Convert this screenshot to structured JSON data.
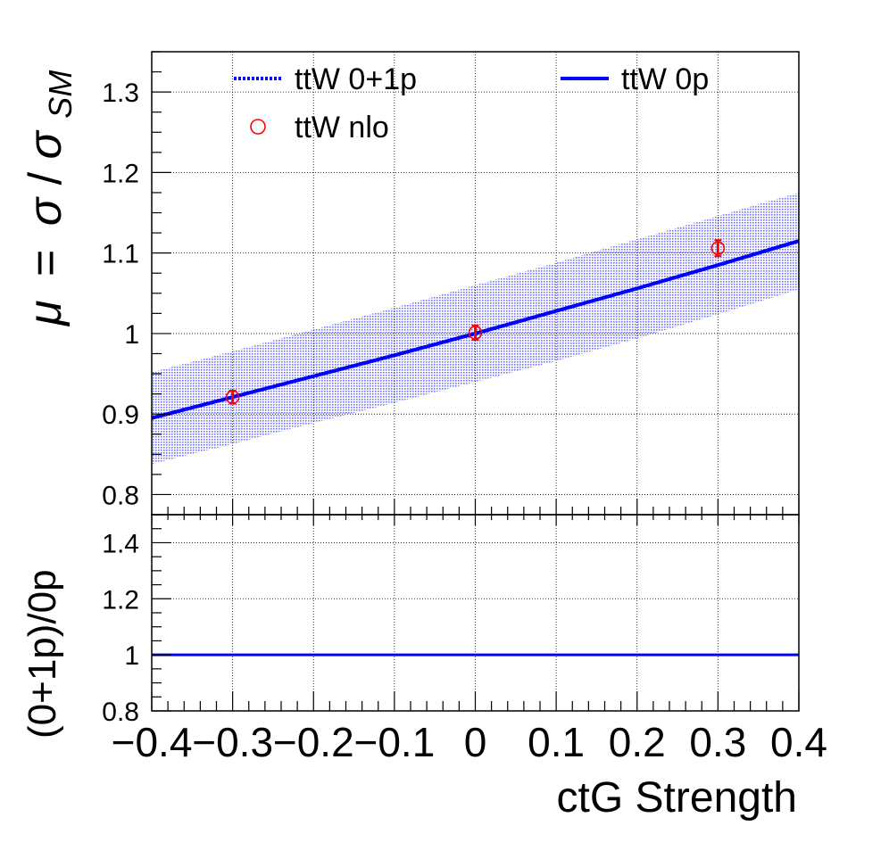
{
  "chart_data": [
    {
      "panel": "main",
      "type": "line",
      "xlabel": "ctG Strength",
      "ylabel": {
        "mu": "μ",
        "eq": "=",
        "sigma": "σ",
        "slash": "/",
        "sub": "SM"
      },
      "xlim": [
        -0.4,
        0.4
      ],
      "ylim": [
        0.775,
        1.35
      ],
      "yticks": [
        0.8,
        0.9,
        1,
        1.1,
        1.2,
        1.3
      ],
      "ytick_labels": [
        "0.8",
        "0.9",
        "1",
        "1.1",
        "1.2",
        "1.3"
      ],
      "grid": true,
      "legend": {
        "placement": "top",
        "entries": [
          "ttW 0+1p",
          "ttW 0p",
          "ttW nlo"
        ]
      },
      "series": [
        {
          "name": "ttW 0+1p",
          "style": "dotted",
          "color": "#0000ff",
          "x": [
            -0.4,
            -0.3,
            -0.2,
            -0.1,
            0.0,
            0.1,
            0.2,
            0.3,
            0.4
          ],
          "y": [
            0.895,
            0.921,
            0.947,
            0.973,
            1.0,
            1.028,
            1.056,
            1.085,
            1.115
          ]
        },
        {
          "name": "ttW 0p",
          "style": "solid",
          "color": "#0000ff",
          "x": [
            -0.4,
            -0.3,
            -0.2,
            -0.1,
            0.0,
            0.1,
            0.2,
            0.3,
            0.4
          ],
          "y": [
            0.895,
            0.921,
            0.947,
            0.973,
            1.0,
            1.028,
            1.056,
            1.085,
            1.115
          ],
          "band_low": [
            0.838,
            0.863,
            0.889,
            0.914,
            0.94,
            0.966,
            0.994,
            1.024,
            1.055
          ],
          "band_high": [
            0.952,
            0.978,
            1.005,
            1.032,
            1.06,
            1.088,
            1.117,
            1.146,
            1.175
          ],
          "band_color": "#0000ff"
        },
        {
          "name": "ttW nlo",
          "style": "markers",
          "color": "#ff0000",
          "x": [
            -0.3,
            0.0,
            0.3
          ],
          "y": [
            0.921,
            1.001,
            1.106
          ],
          "err": [
            0.008,
            0.009,
            0.01
          ]
        }
      ]
    },
    {
      "panel": "ratio",
      "type": "line",
      "xlabel": "ctG Strength",
      "ylabel": "(0+1p)/0p",
      "xlim": [
        -0.4,
        0.4
      ],
      "ylim": [
        0.8,
        1.5
      ],
      "yticks": [
        0.8,
        1,
        1.2,
        1.4
      ],
      "ytick_labels": [
        "0.8",
        "1",
        "1.2",
        "1.4"
      ],
      "xticks": [
        -0.4,
        -0.3,
        -0.2,
        -0.1,
        0,
        0.1,
        0.2,
        0.3,
        0.4
      ],
      "xtick_labels": [
        "−0.4",
        "−0.3",
        "−0.2",
        "−0.1",
        "0",
        "0.1",
        "0.2",
        "0.3",
        "0.4"
      ],
      "grid": true,
      "series": [
        {
          "name": "(0+1p)/0p",
          "style": "solid",
          "color": "#0000ff",
          "x": [
            -0.4,
            0.4
          ],
          "y": [
            1.0,
            1.0
          ]
        }
      ]
    }
  ]
}
